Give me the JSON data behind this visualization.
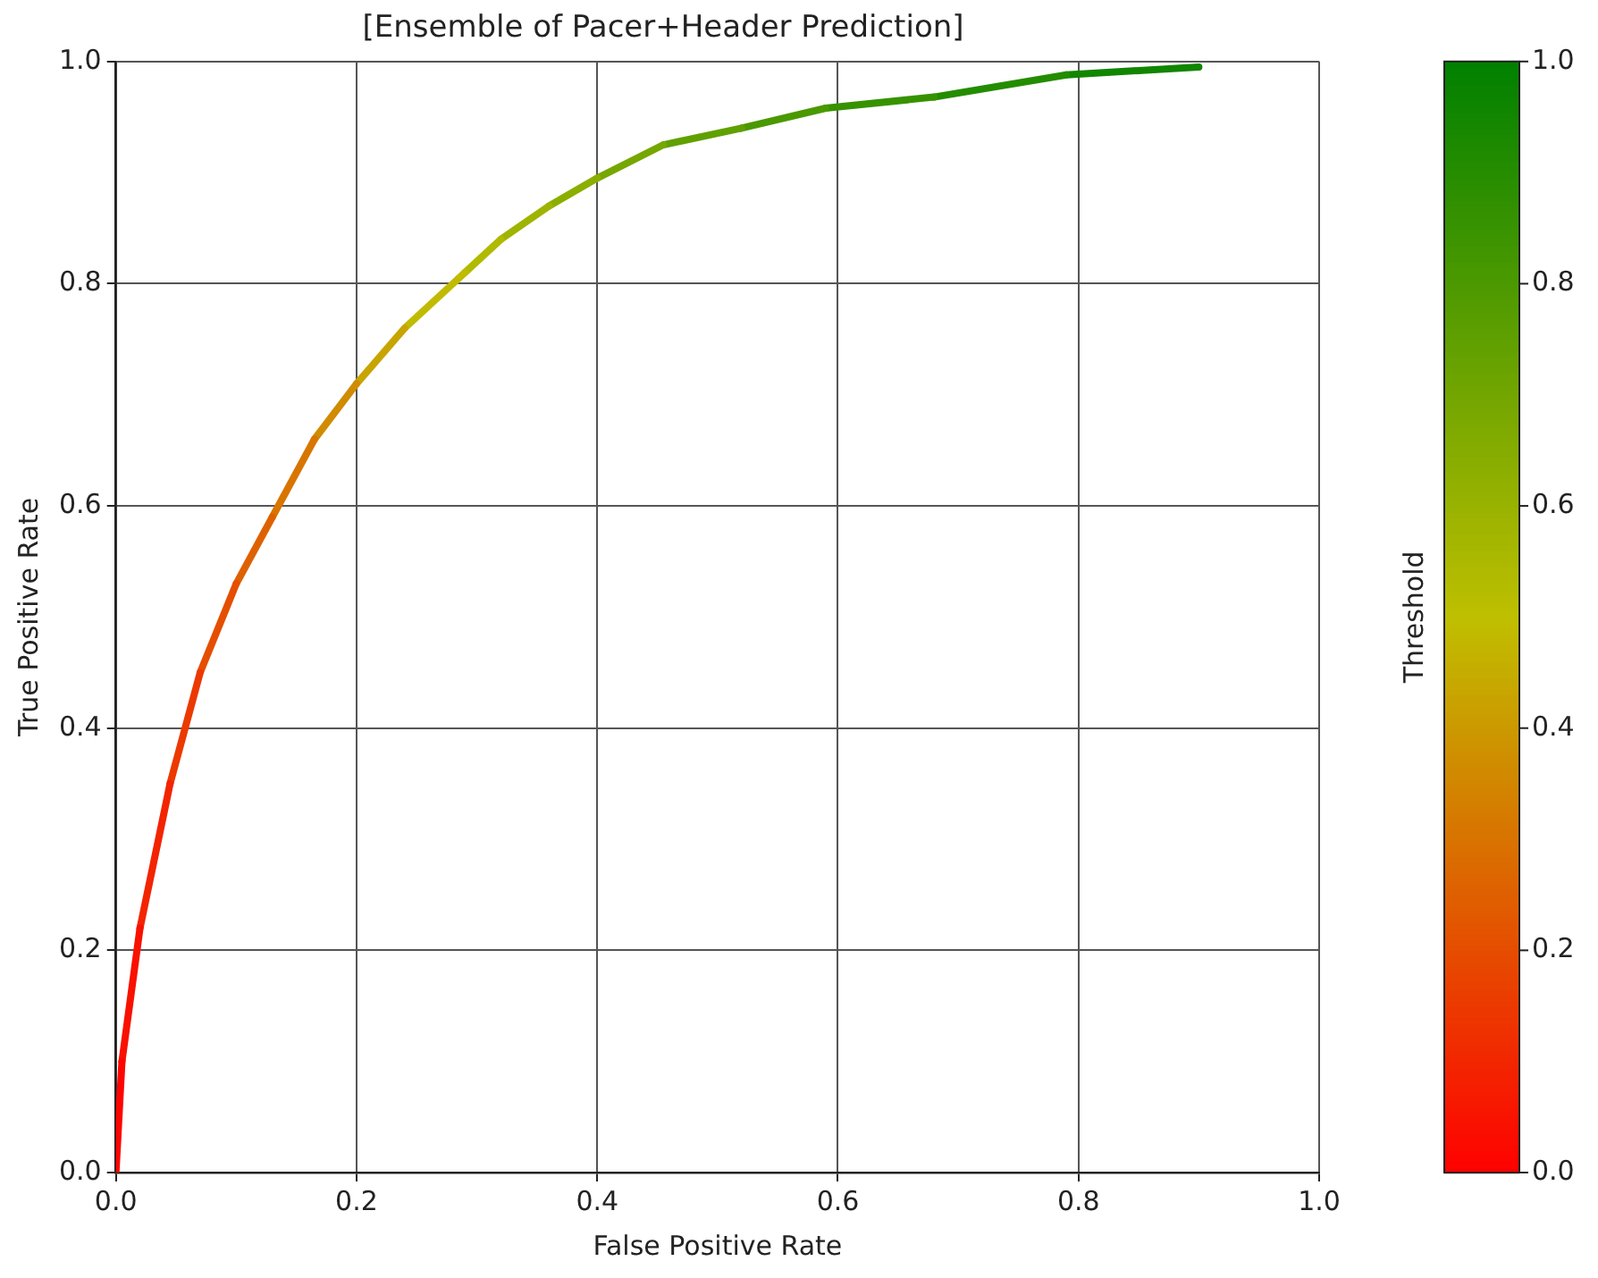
{
  "chart_data": {
    "type": "line",
    "title": "[Ensemble of Pacer+Header Prediction]",
    "xlabel": "False Positive Rate",
    "ylabel": "True Positive Rate",
    "clabel": "Threshold",
    "series": [
      {
        "color": "#fe0400",
        "x": [
          0,
          0.005
        ],
        "values": [
          0,
          0.1
        ]
      },
      {
        "color": "#f91100",
        "x": [
          0.005,
          0.02
        ],
        "values": [
          0.1,
          0.22
        ]
      },
      {
        "color": "#f32400",
        "x": [
          0.02,
          0.045
        ],
        "values": [
          0.22,
          0.35
        ]
      },
      {
        "color": "#ec3900",
        "x": [
          0.045,
          0.07
        ],
        "values": [
          0.35,
          0.45
        ]
      },
      {
        "color": "#e54e00",
        "x": [
          0.07,
          0.1
        ],
        "values": [
          0.45,
          0.53
        ]
      },
      {
        "color": "#de6100",
        "x": [
          0.1,
          0.13
        ],
        "values": [
          0.53,
          0.59
        ]
      },
      {
        "color": "#d87500",
        "x": [
          0.13,
          0.165
        ],
        "values": [
          0.59,
          0.66
        ]
      },
      {
        "color": "#d08b00",
        "x": [
          0.165,
          0.2
        ],
        "values": [
          0.66,
          0.71
        ]
      },
      {
        "color": "#c8a400",
        "x": [
          0.2,
          0.24
        ],
        "values": [
          0.71,
          0.76
        ]
      },
      {
        "color": "#c0bb00",
        "x": [
          0.24,
          0.29
        ],
        "values": [
          0.76,
          0.81
        ]
      },
      {
        "color": "#b0ba00",
        "x": [
          0.29,
          0.32
        ],
        "values": [
          0.81,
          0.84
        ]
      },
      {
        "color": "#9fb400",
        "x": [
          0.32,
          0.36
        ],
        "values": [
          0.84,
          0.87
        ]
      },
      {
        "color": "#8bae00",
        "x": [
          0.36,
          0.4
        ],
        "values": [
          0.87,
          0.895
        ]
      },
      {
        "color": "#76a700",
        "x": [
          0.4,
          0.455
        ],
        "values": [
          0.895,
          0.925
        ]
      },
      {
        "color": "#60a000",
        "x": [
          0.455,
          0.52
        ],
        "values": [
          0.925,
          0.94
        ]
      },
      {
        "color": "#4a9900",
        "x": [
          0.52,
          0.59
        ],
        "values": [
          0.94,
          0.958
        ]
      },
      {
        "color": "#379200",
        "x": [
          0.59,
          0.68
        ],
        "values": [
          0.958,
          0.968
        ]
      },
      {
        "color": "#248c00",
        "x": [
          0.68,
          0.79
        ],
        "values": [
          0.968,
          0.988
        ]
      },
      {
        "color": "#118600",
        "x": [
          0.79,
          0.9
        ],
        "values": [
          0.988,
          0.995
        ]
      }
    ],
    "xlim": [
      0,
      1
    ],
    "xticks": [
      {
        "value": 0,
        "label": "0.0"
      },
      0.2,
      0.4,
      0.6,
      0.8,
      {
        "value": 1,
        "label": "1.0"
      }
    ],
    "ylim": [
      0,
      1
    ],
    "yticks": [
      {
        "value": 0,
        "label": "0.0"
      },
      0.2,
      0.4,
      0.6,
      0.8,
      {
        "value": 1,
        "label": "1.0"
      }
    ],
    "clim": [
      0,
      1
    ],
    "cticks": [
      {
        "value": 0,
        "label": "0.0"
      },
      0.2,
      0.4,
      0.6,
      0.8,
      {
        "value": 1,
        "label": "1.0"
      }
    ],
    "grid": true,
    "legend": false,
    "marker": "none",
    "line_style": "solid"
  }
}
